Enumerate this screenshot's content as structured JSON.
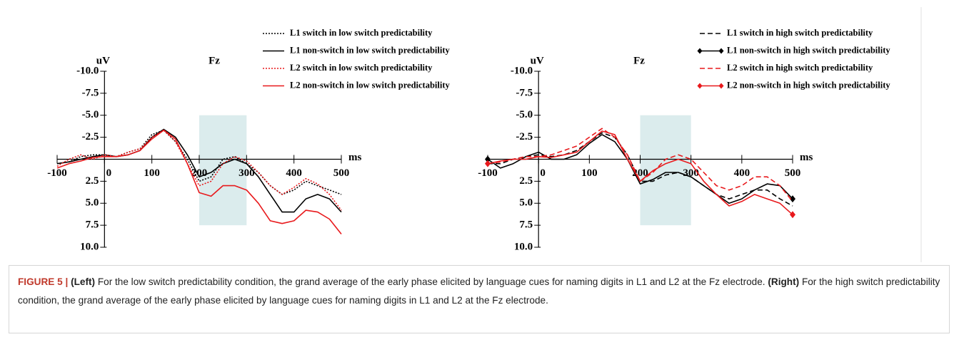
{
  "chart_data": [
    {
      "type": "line",
      "title": "Fz",
      "x_label": "ms",
      "y_label": "uV",
      "inverted_y": true,
      "legend": "upper right",
      "xlim": [
        -100,
        500
      ],
      "xticks": [
        -100,
        0,
        100,
        200,
        300,
        400,
        500
      ],
      "ylim": [
        -10,
        10
      ],
      "yticks": [
        {
          "value": -10,
          "label": "-10.0"
        },
        -7.5,
        {
          "value": -5,
          "label": "-5.0"
        },
        -2.5,
        2.5,
        {
          "value": 5,
          "label": "5.0"
        },
        7.5,
        {
          "value": 10,
          "label": "10.0"
        }
      ],
      "highlight": {
        "x": [
          200,
          300
        ],
        "y": [
          -5,
          7.5
        ],
        "color": "#dbeced"
      },
      "x": [
        -100,
        -75,
        -50,
        -25,
        0,
        25,
        50,
        75,
        100,
        125,
        150,
        175,
        200,
        225,
        250,
        275,
        300,
        325,
        350,
        375,
        400,
        425,
        450,
        475,
        500
      ],
      "series": [
        {
          "name": "L1 switch in  low switch predictability",
          "color": "#000000",
          "style": "dotted",
          "values": [
            0.5,
            0.3,
            -0.3,
            -0.5,
            -0.5,
            -0.3,
            -0.8,
            -1.2,
            -2.8,
            -3.3,
            -2,
            0,
            2.5,
            2,
            0,
            -0.3,
            0.5,
            1.5,
            3,
            4,
            3.5,
            2.5,
            3,
            3.5,
            4
          ]
        },
        {
          "name": "L1 non-switch in low switch predictability",
          "color": "#000000",
          "style": "solid",
          "values": [
            0.5,
            0.3,
            0,
            -0.3,
            -0.5,
            -0.3,
            -0.5,
            -1,
            -2.5,
            -3.4,
            -2.5,
            -0.5,
            2,
            1.5,
            0.5,
            0,
            0.5,
            2,
            4,
            6,
            6,
            4.5,
            4,
            4.5,
            6
          ]
        },
        {
          "name": "L2 switch in low switch predictability",
          "color": "#e8191c",
          "style": "dotted",
          "values": [
            0.8,
            0,
            -0.5,
            0,
            -0.5,
            -0.3,
            -0.8,
            -1.2,
            -2.5,
            -3.3,
            -2,
            0.5,
            3,
            2.5,
            0.5,
            -0.3,
            0.2,
            1.5,
            3,
            4,
            3.2,
            2.2,
            2.8,
            4,
            5.8
          ]
        },
        {
          "name": "L2 non-switch in low switch predictability",
          "color": "#e8191c",
          "style": "solid",
          "values": [
            1,
            0.5,
            0.2,
            -0.2,
            -0.3,
            -0.3,
            -0.5,
            -1,
            -2.3,
            -3.3,
            -2.3,
            0.5,
            3.8,
            4.2,
            3,
            3,
            3.5,
            5,
            7,
            7.3,
            7,
            5.8,
            6,
            6.8,
            8.5
          ]
        }
      ]
    },
    {
      "type": "line",
      "title": "Fz",
      "x_label": "ms",
      "y_label": "uV",
      "inverted_y": true,
      "legend": "upper right",
      "xlim": [
        -100,
        500
      ],
      "xticks": [
        -100,
        0,
        100,
        200,
        300,
        400,
        500
      ],
      "ylim": [
        -10,
        10
      ],
      "yticks": [
        {
          "value": -10,
          "label": "-10.0"
        },
        -7.5,
        {
          "value": -5,
          "label": "-5.0"
        },
        -2.5,
        2.5,
        {
          "value": 5,
          "label": "5.0"
        },
        7.5,
        {
          "value": 10,
          "label": "10.0"
        }
      ],
      "highlight": {
        "x": [
          200,
          300
        ],
        "y": [
          -5,
          7.5
        ],
        "color": "#dbeced"
      },
      "x": [
        -100,
        -75,
        -50,
        -25,
        0,
        25,
        50,
        75,
        100,
        125,
        150,
        175,
        200,
        225,
        250,
        275,
        300,
        325,
        350,
        375,
        400,
        425,
        450,
        475,
        500
      ],
      "series": [
        {
          "name": "L1 switch in high switch predictability",
          "color": "#000000",
          "style": "dashed",
          "values": [
            0.5,
            0.5,
            0,
            -0.3,
            -0.5,
            -0.3,
            -0.5,
            -1,
            -2,
            -3,
            -2.5,
            -0.5,
            2.5,
            2.5,
            1.8,
            1.5,
            2,
            3,
            4,
            4.5,
            4,
            3.5,
            3.5,
            4.5,
            5.3
          ]
        },
        {
          "name": "L1 non-switch in high switch predictability",
          "color": "#000000",
          "style": "solid",
          "marker": "diamond",
          "values": [
            0,
            1,
            0.5,
            -0.3,
            -0.8,
            0,
            0,
            -0.5,
            -1.8,
            -2.8,
            -2,
            0,
            2.8,
            2.3,
            1.5,
            1.5,
            2,
            3,
            4,
            5,
            4.5,
            3.5,
            2.8,
            3,
            4.5
          ]
        },
        {
          "name": "L2 switch in high switch predictability",
          "color": "#e8191c",
          "style": "dashed",
          "values": [
            0.5,
            0.3,
            0,
            -0.3,
            -0.3,
            -0.5,
            -1,
            -1.5,
            -2.5,
            -3.5,
            -2.5,
            -0.5,
            2.5,
            1.5,
            0,
            -0.5,
            0,
            1.5,
            3,
            3.5,
            3,
            2,
            2,
            3,
            4.8
          ]
        },
        {
          "name": "L2 non-switch in high switch predictability",
          "color": "#e8191c",
          "style": "solid",
          "marker": "diamond",
          "values": [
            0.5,
            0.2,
            0,
            0,
            -0.3,
            -0.2,
            -0.5,
            -0.8,
            -2,
            -3.2,
            -2.8,
            0,
            2.5,
            1.3,
            0.5,
            0,
            0.5,
            2.5,
            4,
            5.3,
            4.8,
            4,
            4.5,
            5,
            6.3
          ]
        }
      ]
    }
  ],
  "caption": {
    "figure": "FIGURE 5 |",
    "left_label": "(Left)",
    "left_text": "For the low switch predictability condition, the grand average of the early phase elicited by language cues for naming digits in L1 and L2 at the Fz electrode.",
    "right_label": "(Right)",
    "right_text": "For the high switch predictability condition, the grand average of the early phase elicited by language cues for naming digits in L1 and L2 at the Fz electrode."
  }
}
